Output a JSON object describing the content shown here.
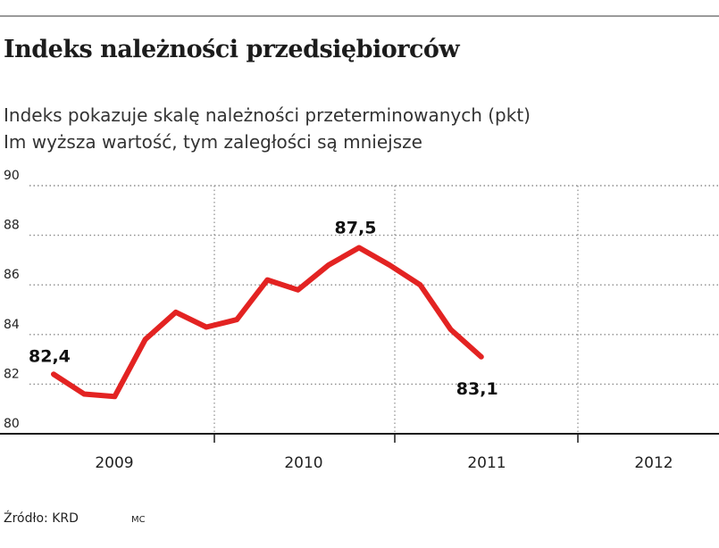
{
  "header": {
    "title": "Indeks należności przedsiębiorców",
    "subtitle_line1": "Indeks pokazuje skalę należności przeterminowanych (pkt)",
    "subtitle_line2": "Im wyższa wartość, tym zaległości są mniejsze"
  },
  "footer": {
    "source": "Źródło: KRD",
    "initials": "MC"
  },
  "colors": {
    "line": "#e32322",
    "grid": "#8c8c8c",
    "axis": "#1a1a1a",
    "text": "#222222"
  },
  "chart_data": {
    "type": "line",
    "title": "Indeks należności przedsiębiorców",
    "xlabel": "",
    "ylabel": "pkt",
    "ylim": [
      80,
      90
    ],
    "yticks": [
      80,
      82,
      84,
      86,
      88,
      90
    ],
    "ytick_labels": [
      "80",
      "82",
      "84",
      "86",
      "88",
      "90"
    ],
    "year_labels": [
      "2009",
      "2010",
      "2011",
      "2012"
    ],
    "periods_per_year": 4,
    "grid": true,
    "series": [
      {
        "name": "Indeks należności przedsiębiorców",
        "values": [
          82.4,
          81.6,
          81.5,
          83.8,
          84.9,
          84.3,
          84.6,
          86.2,
          85.8,
          86.8,
          87.5,
          86.8,
          86.0,
          84.2,
          83.1
        ]
      }
    ],
    "annotations": [
      {
        "index": 0,
        "text": "82,4"
      },
      {
        "index": 10,
        "text": "87,5"
      },
      {
        "index": 14,
        "text": "83,1"
      }
    ]
  }
}
